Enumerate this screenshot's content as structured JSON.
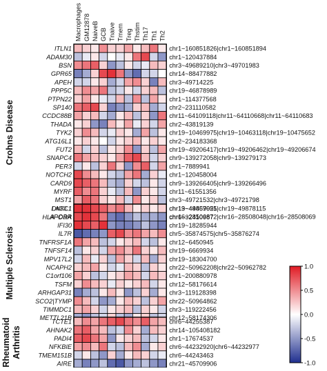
{
  "chart_data": {
    "type": "heatmap",
    "columns": [
      "Macrophages",
      "GM12878",
      "NaiveB",
      "GCB",
      "Tnaive",
      "Tmem",
      "Treg",
      "Thstim",
      "Th17",
      "Th1",
      "Th2"
    ],
    "colorbar": {
      "min": -1.0,
      "max": 1.0,
      "ticks": [
        "1.0",
        "0.5",
        "0.0",
        "-0.5",
        "-1.0"
      ],
      "low_color": "#1f2f8f",
      "mid_color": "#ffffff",
      "high_color": "#e01b24"
    },
    "groups": [
      {
        "name": "Crohns Disease",
        "rows": [
          {
            "gene": "ITLN1",
            "locus": "chr1~160851826|chr1~160851894",
            "values": [
              0.3,
              0.2,
              0.1,
              0.5,
              0.2,
              0.2,
              0.4,
              0.1,
              0.3,
              0.6,
              0.1
            ]
          },
          {
            "gene": "ADAM30",
            "locus": "chr1~120437884",
            "values": [
              -0.3,
              -0.1,
              0.1,
              -0.2,
              0.0,
              -0.1,
              0.1,
              0.6,
              0.8,
              -0.2,
              -0.5
            ]
          },
          {
            "gene": "BSN",
            "locus": "chr3~49689210|chr3~49701983",
            "values": [
              0.5,
              0.6,
              0.7,
              0.2,
              -0.5,
              -0.3,
              0.1,
              -0.2,
              -0.1,
              0.3,
              0.2
            ]
          },
          {
            "gene": "GPR65",
            "locus": "chr14~88477882",
            "values": [
              -0.6,
              -0.4,
              0.2,
              0.8,
              0.9,
              0.6,
              -0.5,
              -0.7,
              -0.2,
              -0.2,
              0.0
            ]
          },
          {
            "gene": "APEH",
            "locus": "chr3~49714225",
            "values": [
              -0.2,
              -0.2,
              0.1,
              0.2,
              -0.4,
              -0.2,
              0.4,
              0.5,
              0.2,
              -0.6,
              0.3
            ]
          },
          {
            "gene": "PPP5C",
            "locus": "chr19~46878989",
            "values": [
              0.3,
              0.5,
              0.4,
              0.6,
              -0.3,
              -0.2,
              0.1,
              -0.2,
              0.2,
              0.3,
              -0.3
            ]
          },
          {
            "gene": "PTPN22",
            "locus": "chr1~114377568",
            "values": [
              0.2,
              0.4,
              0.1,
              -0.1,
              -0.2,
              0.3,
              -0.3,
              0.5,
              -0.3,
              0.4,
              0.1
            ]
          },
          {
            "gene": "SP140",
            "locus": "chr2~231110582",
            "values": [
              0.6,
              0.7,
              0.8,
              0.2,
              -0.6,
              -0.5,
              -0.4,
              0.2,
              0.3,
              -0.4,
              -0.2
            ]
          },
          {
            "gene": "CCDC88B",
            "locus": "chr11~64109118|chr11~64110668|chr11~64110683",
            "values": [
              0.4,
              0.2,
              0.3,
              -0.2,
              -0.4,
              0.1,
              0.3,
              -0.3,
              0.2,
              -0.5,
              0.6
            ]
          },
          {
            "gene": "THADA",
            "locus": "chr2~43819139",
            "values": [
              0.1,
              0.2,
              -0.5,
              -0.6,
              0.3,
              0.1,
              0.4,
              -0.1,
              0.2,
              -0.2,
              0.4
            ]
          },
          {
            "gene": "TYK2",
            "locus": "chr19~10469975|chr19~10463118|chr19~10475652",
            "values": [
              0.2,
              0.5,
              0.3,
              -0.2,
              -0.1,
              0.2,
              0.1,
              -0.4,
              0.4,
              -0.3,
              0.1
            ]
          },
          {
            "gene": "ATG16L1",
            "locus": "chr2~234183368",
            "values": [
              0.1,
              0.2,
              0.1,
              0.0,
              -0.2,
              0.1,
              0.2,
              0.3,
              0.1,
              0.2,
              0.1
            ]
          },
          {
            "gene": "FUT2",
            "locus": "chr19~49206417|chr19~49206462|chr19~49206674",
            "values": [
              0.3,
              -0.2,
              0.2,
              -0.3,
              0.1,
              0.2,
              0.5,
              -0.5,
              0.2,
              -0.3,
              0.4
            ]
          },
          {
            "gene": "SNAPC4",
            "locus": "chr9~139272058|chr9~139279173",
            "values": [
              0.6,
              0.4,
              0.3,
              0.2,
              0.1,
              0.4,
              0.7,
              0.8,
              0.3,
              -0.2,
              0.2
            ]
          },
          {
            "gene": "PER3",
            "locus": "chr1~7889941",
            "values": [
              -0.2,
              0.1,
              -0.3,
              0.2,
              0.6,
              0.2,
              -0.5,
              0.5,
              0.7,
              -0.2,
              0.4
            ]
          },
          {
            "gene": "NOTCH2",
            "locus": "chr1~120458004",
            "values": [
              0.8,
              0.5,
              0.3,
              0.1,
              -0.2,
              -0.3,
              0.4,
              0.6,
              -0.4,
              0.2,
              -0.1
            ]
          },
          {
            "gene": "CARD9",
            "locus": "chr9~139266405|chr9~139266496",
            "values": [
              0.8,
              0.7,
              0.6,
              0.3,
              -0.3,
              -0.4,
              0.2,
              -0.2,
              -0.3,
              0.1,
              -0.2
            ]
          },
          {
            "gene": "MYRF",
            "locus": "chr11~61551356",
            "values": [
              0.7,
              0.5,
              0.6,
              0.2,
              -0.1,
              -0.3,
              0.3,
              -0.5,
              0.2,
              0.1,
              -0.2
            ]
          },
          {
            "gene": "MST1",
            "locus": "chr3~49721532|chr3~49721798",
            "values": [
              0.4,
              0.7,
              0.6,
              0.2,
              0.1,
              0.3,
              -0.2,
              0.5,
              0.1,
              0.2,
              -0.3
            ]
          },
          {
            "gene": "LACC1",
            "locus": "chr13~44457925",
            "values": [
              0.6,
              0.4,
              0.3,
              0.2,
              0.4,
              0.3,
              -0.2,
              0.2,
              0.3,
              0.5,
              0.1
            ]
          },
          {
            "gene": "APOBR",
            "locus": "chr16~28506872|chr16~28508048|chr16~28508069",
            "values": [
              0.9,
              0.8,
              0.7,
              0.5,
              -0.2,
              -0.3,
              -0.1,
              0.2,
              0.3,
              0.6,
              0.5
            ]
          }
        ]
      },
      {
        "name": "Multiple Sclerosis",
        "rows": [
          {
            "gene": "DKKL1",
            "locus": "chr19~49869051|chr19~49878115",
            "values": [
              0.9,
              0.9,
              0.8,
              0.7,
              0.5,
              0.6,
              0.3,
              0.1,
              0.2,
              0.1,
              0.2
            ]
          },
          {
            "gene": "HLA~DRA",
            "locus": "chr6~32410987",
            "values": [
              0.8,
              0.9,
              0.8,
              0.6,
              -0.6,
              -0.7,
              -0.5,
              -0.3,
              -0.4,
              -0.4,
              -0.5
            ]
          },
          {
            "gene": "IFI30",
            "locus": "chr19~18285944",
            "values": [
              0.9,
              0.8,
              0.7,
              0.9,
              -0.5,
              -0.6,
              -0.6,
              -0.5,
              -0.3,
              -0.5,
              -0.6
            ]
          },
          {
            "gene": "IL7R",
            "locus": "chr5~35874575|chr5~35876274",
            "values": [
              -0.8,
              -0.7,
              -0.6,
              -0.5,
              0.7,
              0.8,
              0.5,
              0.6,
              0.4,
              0.3,
              0.5
            ]
          },
          {
            "gene": "TNFRSF1A",
            "locus": "chr12~6450945",
            "values": [
              0.6,
              0.4,
              0.3,
              -0.3,
              -0.2,
              0.1,
              0.2,
              0.3,
              -0.2,
              -0.3,
              0.1
            ]
          },
          {
            "gene": "TNFSF14",
            "locus": "chr19~6669934",
            "values": [
              -0.3,
              0.1,
              0.2,
              -0.2,
              0.4,
              0.5,
              0.3,
              0.6,
              0.2,
              0.1,
              0.3
            ]
          },
          {
            "gene": "MPV17L2",
            "locus": "chr19~18304700",
            "values": [
              -0.2,
              0.3,
              -0.1,
              0.2,
              -0.3,
              0.4,
              0.2,
              -0.2,
              0.3,
              -0.4,
              0.2
            ]
          },
          {
            "gene": "NCAPH2",
            "locus": "chr22~50962208|chr22~50962782",
            "values": [
              0.2,
              0.3,
              0.4,
              0.1,
              -0.2,
              -0.1,
              0.3,
              0.2,
              -0.3,
              0.2,
              0.1
            ]
          },
          {
            "gene": "C1orf106",
            "locus": "chr1~200880978",
            "values": [
              0.4,
              0.2,
              -0.3,
              -0.2,
              0.1,
              0.2,
              0.4,
              0.3,
              -0.2,
              0.3,
              0.2
            ]
          },
          {
            "gene": "TSFM",
            "locus": "chr12~58176614",
            "values": [
              0.2,
              0.5,
              0.3,
              0.2,
              -0.1,
              0.2,
              0.1,
              0.2,
              0.3,
              -0.2,
              0.1
            ]
          },
          {
            "gene": "ARHGAP31",
            "locus": "chr3~119128398",
            "values": [
              -0.6,
              -0.4,
              -0.3,
              0.1,
              0.3,
              0.1,
              -0.5,
              -0.3,
              0.2,
              -0.4,
              0.1
            ]
          },
          {
            "gene": "SCO2|TYMP",
            "locus": "chr22~50964862",
            "values": [
              0.5,
              0.3,
              -0.2,
              -0.5,
              -0.4,
              0.1,
              0.3,
              0.2,
              -0.3,
              0.2,
              0.4
            ]
          },
          {
            "gene": "TIMMDC1",
            "locus": "chr3~119222456",
            "values": [
              0.3,
              0.4,
              0.2,
              -0.2,
              0.1,
              0.2,
              0.3,
              -0.3,
              0.2,
              0.1,
              -0.2
            ]
          },
          {
            "gene": "METTL21B",
            "locus": "chr12~58174306",
            "values": [
              -0.4,
              -0.5,
              -0.3,
              -0.2,
              0.2,
              -0.3,
              -0.4,
              0.1,
              0.2,
              -0.3,
              -0.2
            ]
          }
        ]
      },
      {
        "name": "Rheumatoid Arthritis",
        "rows": [
          {
            "gene": "TCTE1",
            "locus": "chr6~44255387",
            "values": [
              0.3,
              0.5,
              0.4,
              0.6,
              0.7,
              0.8,
              0.6,
              0.5,
              0.7,
              0.4,
              0.3
            ]
          },
          {
            "gene": "AHNAK2",
            "locus": "chr14~105408182",
            "values": [
              0.6,
              0.7,
              0.4,
              0.3,
              -0.3,
              -0.2,
              0.5,
              0.2,
              -0.4,
              0.3,
              0.2
            ]
          },
          {
            "gene": "PADI4",
            "locus": "chr1~17674537",
            "values": [
              0.7,
              0.8,
              0.6,
              0.4,
              -0.5,
              0.1,
              0.2,
              0.3,
              -0.3,
              -0.2,
              0.1
            ]
          },
          {
            "gene": "NFKBIE",
            "locus": "chr6~44232920|chr6~44232977",
            "values": [
              0.4,
              0.5,
              0.3,
              0.6,
              -0.2,
              -0.3,
              0.3,
              0.5,
              -0.4,
              0.1,
              0.2
            ]
          },
          {
            "gene": "TMEM151B",
            "locus": "chr6~44243463",
            "values": [
              -0.2,
              0.1,
              -0.3,
              -0.5,
              0.2,
              -0.4,
              0.1,
              0.3,
              0.2,
              -0.2,
              -0.1
            ]
          },
          {
            "gene": "AIRE",
            "locus": "chr21~45709906",
            "values": [
              -0.4,
              -0.6,
              -0.5,
              -0.3,
              -0.7,
              -0.8,
              -0.5,
              -0.4,
              -0.3,
              -0.5,
              -0.6
            ]
          }
        ]
      }
    ]
  }
}
